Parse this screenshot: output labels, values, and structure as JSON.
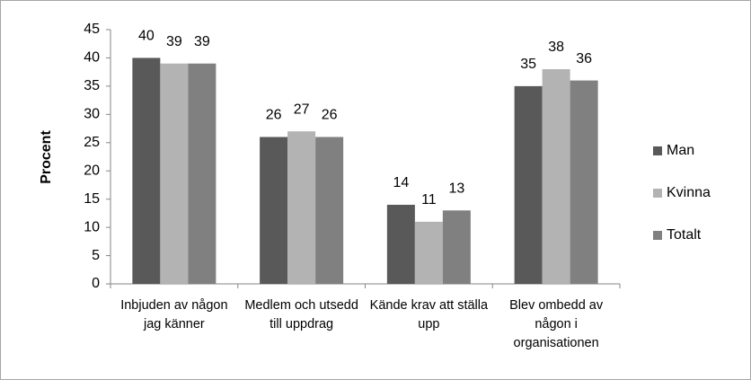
{
  "chart_data": {
    "type": "bar",
    "ylabel": "Procent",
    "categories": [
      "Inbjuden av någon jag känner",
      "Medlem och utsedd till uppdrag",
      "Kände krav att ställa upp",
      "Blev ombedd av någon i organisationen"
    ],
    "series": [
      {
        "name": "Man",
        "color": "#595959",
        "values": [
          40,
          26,
          14,
          35
        ]
      },
      {
        "name": "Kvinna",
        "color": "#b3b3b3",
        "values": [
          39,
          27,
          11,
          38
        ]
      },
      {
        "name": "Totalt",
        "color": "#808080",
        "values": [
          39,
          26,
          13,
          36
        ]
      }
    ],
    "ylim": [
      0,
      45
    ],
    "yticks": [
      0,
      5,
      10,
      15,
      20,
      25,
      30,
      35,
      40,
      45
    ],
    "legend": "right",
    "grid": false
  }
}
